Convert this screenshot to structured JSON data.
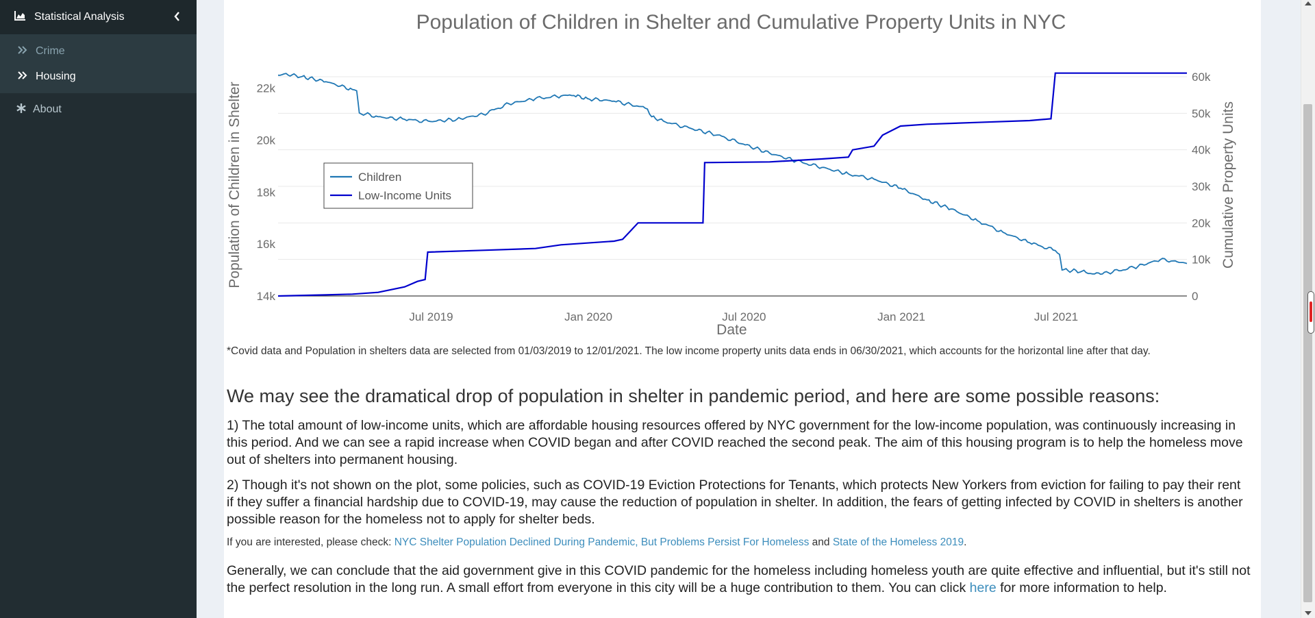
{
  "sidebar": {
    "section_title": "Statistical Analysis",
    "items": [
      {
        "label": "Crime"
      },
      {
        "label": "Housing"
      }
    ],
    "about_label": "About"
  },
  "chart_data": {
    "type": "line",
    "title": "Population of Children in Shelter and Cumulative Property Units in NYC",
    "xlabel": "Date",
    "ylabel_left": "Population of Children in Shelter",
    "ylabel_right": "Cumulative Property Units",
    "x_ticks": [
      "Jul 2019",
      "Jan 2020",
      "Jul 2020",
      "Jan 2021",
      "Jul 2021"
    ],
    "y_left_ticks": [
      "14k",
      "16k",
      "18k",
      "20k",
      "22k"
    ],
    "y_right_ticks": [
      "0",
      "10k",
      "20k",
      "30k",
      "40k",
      "50k",
      "60k"
    ],
    "ylim_left": [
      14000,
      22600
    ],
    "ylim_right": [
      0,
      60000
    ],
    "xlim": [
      "2019-01-03",
      "2021-12-01"
    ],
    "legend": {
      "position": "inside-left",
      "entries": [
        "Children",
        "Low-Income Units"
      ]
    },
    "series": [
      {
        "name": "Children",
        "axis": "left",
        "color": "#1f77b4",
        "points": [
          [
            "2019-01-03",
            22500
          ],
          [
            "2019-01-10",
            22550
          ],
          [
            "2019-01-31",
            22450
          ],
          [
            "2019-02-28",
            22250
          ],
          [
            "2019-03-31",
            21950
          ],
          [
            "2019-04-05",
            21900
          ],
          [
            "2019-04-08",
            21050
          ],
          [
            "2019-04-30",
            20900
          ],
          [
            "2019-05-31",
            20800
          ],
          [
            "2019-06-15",
            20750
          ],
          [
            "2019-06-30",
            20720
          ],
          [
            "2019-07-31",
            20800
          ],
          [
            "2019-08-31",
            21000
          ],
          [
            "2019-09-30",
            21400
          ],
          [
            "2019-10-31",
            21600
          ],
          [
            "2019-11-30",
            21700
          ],
          [
            "2019-12-15",
            21720
          ],
          [
            "2019-12-31",
            21600
          ],
          [
            "2020-01-31",
            21500
          ],
          [
            "2020-02-29",
            21300
          ],
          [
            "2020-03-10",
            21200
          ],
          [
            "2020-03-15",
            20900
          ],
          [
            "2020-03-31",
            20700
          ],
          [
            "2020-04-30",
            20450
          ],
          [
            "2020-05-31",
            20200
          ],
          [
            "2020-06-30",
            19850
          ],
          [
            "2020-07-31",
            19500
          ],
          [
            "2020-08-31",
            19200
          ],
          [
            "2020-09-30",
            18950
          ],
          [
            "2020-10-31",
            18700
          ],
          [
            "2020-11-30",
            18500
          ],
          [
            "2020-12-31",
            18150
          ],
          [
            "2021-01-31",
            17700
          ],
          [
            "2021-02-28",
            17350
          ],
          [
            "2021-03-31",
            16900
          ],
          [
            "2021-04-30",
            16450
          ],
          [
            "2021-05-31",
            16050
          ],
          [
            "2021-06-30",
            15750
          ],
          [
            "2021-07-05",
            15600
          ],
          [
            "2021-07-08",
            15000
          ],
          [
            "2021-07-31",
            14950
          ],
          [
            "2021-08-15",
            14850
          ],
          [
            "2021-08-31",
            14900
          ],
          [
            "2021-09-30",
            15100
          ],
          [
            "2021-10-31",
            15400
          ],
          [
            "2021-11-15",
            15350
          ],
          [
            "2021-12-01",
            15250
          ]
        ]
      },
      {
        "name": "Low-Income Units",
        "axis": "right",
        "color": "#0000cd",
        "points": [
          [
            "2019-01-03",
            0
          ],
          [
            "2019-02-28",
            300
          ],
          [
            "2019-03-31",
            500
          ],
          [
            "2019-04-30",
            1000
          ],
          [
            "2019-05-31",
            2500
          ],
          [
            "2019-06-15",
            4000
          ],
          [
            "2019-06-24",
            4500
          ],
          [
            "2019-06-27",
            12000
          ],
          [
            "2019-08-31",
            12500
          ],
          [
            "2019-10-31",
            13000
          ],
          [
            "2019-11-30",
            14000
          ],
          [
            "2020-01-31",
            15000
          ],
          [
            "2020-02-10",
            15500
          ],
          [
            "2020-02-20",
            18000
          ],
          [
            "2020-02-28",
            20000
          ],
          [
            "2020-05-14",
            20000
          ],
          [
            "2020-05-16",
            36500
          ],
          [
            "2020-07-31",
            36700
          ],
          [
            "2020-09-30",
            37500
          ],
          [
            "2020-10-31",
            38000
          ],
          [
            "2020-11-05",
            40000
          ],
          [
            "2020-11-30",
            41000
          ],
          [
            "2020-12-10",
            44000
          ],
          [
            "2020-12-31",
            46500
          ],
          [
            "2021-01-31",
            47000
          ],
          [
            "2021-03-31",
            47500
          ],
          [
            "2021-05-31",
            48000
          ],
          [
            "2021-06-25",
            48500
          ],
          [
            "2021-06-30",
            61000
          ],
          [
            "2021-12-01",
            61000
          ]
        ]
      }
    ]
  },
  "note_text": "*Covid data and Population in shelters data are selected from 01/03/2019 to 12/01/2021. The low income property units data ends in 06/30/2021, which accounts for the horizontal line after that day.",
  "heading": "We may see the dramatical drop of population in shelter in pandemic period, and here are some possible reasons:",
  "paragraph_1": "1) The total amount of low-income units, which are affordable housing resources offered by NYC government for the low-income population, was continuously increasing in this period. And we can see a rapid increase when COVID began and after COVID reached the second peak. The aim of this housing program is to help the homeless move out of shelters into permanent housing.",
  "paragraph_2": "2) Though it's not shown on the plot, some policies, such as COVID-19 Eviction Protections for Tenants, which protects New Yorkers from eviction for failing to pay their rent if they suffer a financial hardship due to COVID-19, may cause the reduction of population in shelter. In addition, the fears of getting infected by COVID in shelters is another possible reason for the homeless not to apply for shelter beds.",
  "links_line": {
    "prefix": "If you are interested, please check: ",
    "link_1": "NYC Shelter Population Declined During Pandemic, But Problems Persist For Homeless",
    "connector": " and ",
    "link_2": "State of the Homeless 2019",
    "suffix": "."
  },
  "paragraph_4": {
    "before_link": "Generally, we can conclude that the aid government give in this COVID pandemic for the homeless including homeless youth are quite effective and influential, but it's still not the perfect resolution in the long run. A small effort from everyone in this city will be a huge contribution to them. You can click ",
    "link": "here",
    "after_link": " for more information to help."
  }
}
